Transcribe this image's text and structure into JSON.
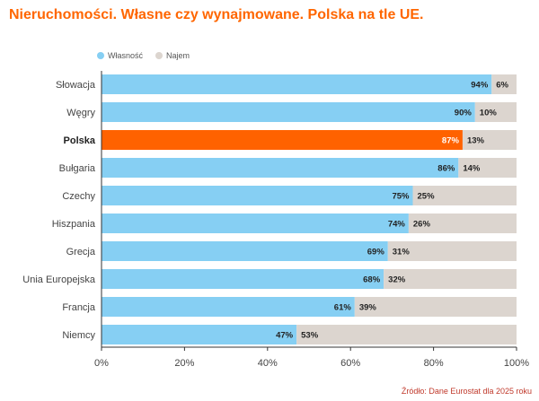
{
  "title": "Nieruchomości. Własne czy wynajmowane. Polska na tle UE.",
  "source": "Źródło: Dane Eurostat dla 2025 roku",
  "colors": {
    "accent": "#ff6600",
    "own": "#86cff3",
    "rent": "#dcd5cf",
    "highlight": "#ff6200",
    "axis_text": "#444444",
    "source_text": "#c0392b"
  },
  "legend": [
    {
      "label": "Własność",
      "color": "#86cff3"
    },
    {
      "label": "Najem",
      "color": "#dcd5cf"
    }
  ],
  "chart_data": {
    "type": "bar",
    "orientation": "horizontal",
    "stacked": true,
    "categories": [
      "Słowacja",
      "Węgry",
      "Polska",
      "Bułgaria",
      "Czechy",
      "Hiszpania",
      "Grecja",
      "Unia Europejska",
      "Francja",
      "Niemcy"
    ],
    "series": [
      {
        "name": "Własność",
        "values": [
          94,
          90,
          87,
          86,
          75,
          74,
          69,
          68,
          61,
          47
        ]
      },
      {
        "name": "Najem",
        "values": [
          6,
          10,
          13,
          14,
          25,
          26,
          31,
          32,
          39,
          53
        ]
      }
    ],
    "value_labels": {
      "own": [
        "94%",
        "90%",
        "87%",
        "86%",
        "75%",
        "74%",
        "69%",
        "68%",
        "61%",
        "47%"
      ],
      "rent": [
        "6%",
        "10%",
        "13%",
        "14%",
        "25%",
        "26%",
        "31%",
        "32%",
        "39%",
        "53%"
      ]
    },
    "highlight_category": "Polska",
    "xlim": [
      0,
      100
    ],
    "x_ticks": [
      0,
      20,
      40,
      60,
      80,
      100
    ],
    "x_tick_labels": [
      "0%",
      "20%",
      "40%",
      "60%",
      "80%",
      "100%"
    ],
    "grid": false,
    "legend_position": "top-left"
  }
}
